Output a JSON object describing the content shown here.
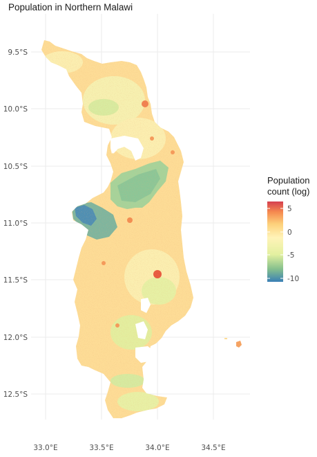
{
  "title": "Population in Northern Malawi",
  "chart_data": {
    "type": "heatmap",
    "title": "Population in Northern Malawi",
    "x_axis": {
      "labels": [
        "33.0°E",
        "33.5°E",
        "34.0°E",
        "34.5°E"
      ],
      "values": [
        33.0,
        33.5,
        34.0,
        34.5
      ],
      "range": [
        32.95,
        34.85
      ]
    },
    "y_axis": {
      "labels": [
        "9.5°S",
        "10.0°S",
        "10.5°S",
        "11.0°S",
        "11.5°S",
        "12.0°S",
        "12.5°S"
      ],
      "values": [
        -9.5,
        -10.0,
        -10.5,
        -11.0,
        -11.5,
        -12.0,
        -12.5
      ],
      "range": [
        -12.8,
        -9.2
      ]
    },
    "legend": {
      "title_line1": "Population",
      "title_line2": "count (log)",
      "ticks": [
        "5",
        "0",
        "-5",
        "-10"
      ],
      "tick_values": [
        5,
        0,
        -5,
        -10
      ],
      "range": [
        -10.8,
        6.5
      ],
      "placement": "right",
      "colors": [
        "#3a7fb5",
        "#86c08d",
        "#e3f0a0",
        "#fff3b8",
        "#fdd17b",
        "#f5894f",
        "#d53e4f"
      ]
    }
  }
}
